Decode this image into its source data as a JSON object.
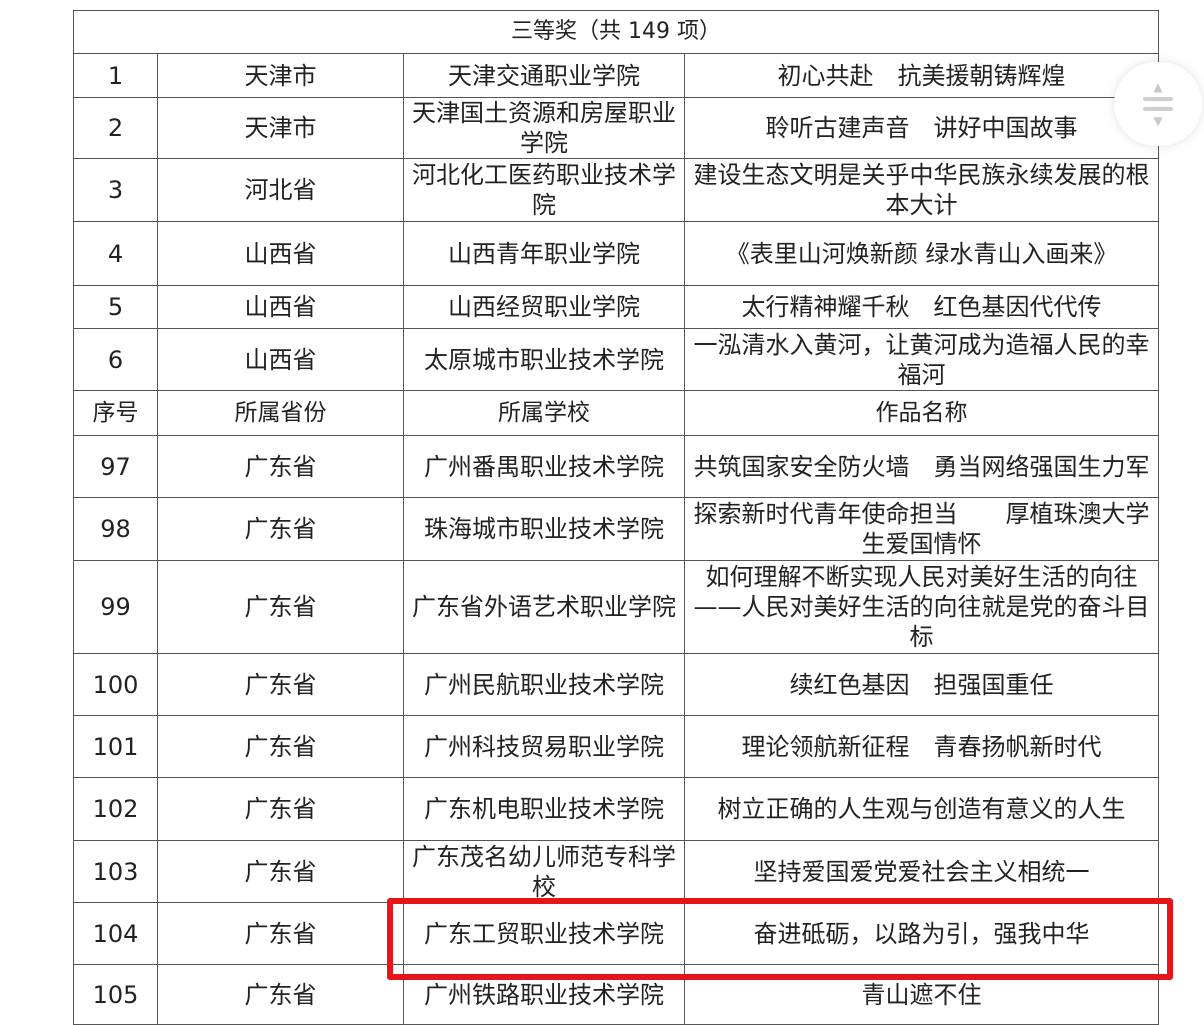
{
  "title": "三等奖（共 149 项）",
  "top_rows": [
    {
      "no": "1",
      "province": "天津市",
      "school": "天津交通职业学院",
      "work": "初心共赴　抗美援朝铸辉煌"
    },
    {
      "no": "2",
      "province": "天津市",
      "school": "天津国土资源和房屋职业学院",
      "work": "聆听古建声音　讲好中国故事"
    },
    {
      "no": "3",
      "province": "河北省",
      "school": "河北化工医药职业技术学院",
      "work": "建设生态文明是关乎中华民族永续发展的根本大计"
    },
    {
      "no": "4",
      "province": "山西省",
      "school": "山西青年职业学院",
      "work": "《表里山河焕新颜 绿水青山入画来》"
    },
    {
      "no": "5",
      "province": "山西省",
      "school": "山西经贸职业学院",
      "work": "太行精神耀千秋　红色基因代代传"
    },
    {
      "no": "6",
      "province": "山西省",
      "school": "太原城市职业技术学院",
      "work": "一泓清水入黄河，让黄河成为造福人民的幸福河"
    }
  ],
  "header": {
    "no": "序号",
    "province": "所属省份",
    "school": "所属学校",
    "work": "作品名称"
  },
  "bottom_rows": [
    {
      "no": "97",
      "province": "广东省",
      "school": "广州番禺职业技术学院",
      "work": "共筑国家安全防火墙　勇当网络强国生力军"
    },
    {
      "no": "98",
      "province": "广东省",
      "school": "珠海城市职业技术学院",
      "work": "探索新时代青年使命担当　　厚植珠澳大学生爱国情怀"
    },
    {
      "no": "99",
      "province": "广东省",
      "school": "广东省外语艺术职业学院",
      "work": "如何理解不断实现人民对美好生活的向往——人民对美好生活的向往就是党的奋斗目标"
    },
    {
      "no": "100",
      "province": "广东省",
      "school": "广州民航职业技术学院",
      "work": "续红色基因　担强国重任"
    },
    {
      "no": "101",
      "province": "广东省",
      "school": "广州科技贸易职业学院",
      "work": "理论领航新征程　青春扬帆新时代"
    },
    {
      "no": "102",
      "province": "广东省",
      "school": "广东机电职业技术学院",
      "work": "树立正确的人生观与创造有意义的人生"
    },
    {
      "no": "103",
      "province": "广东省",
      "school": "广东茂名幼儿师范专科学校",
      "work": "坚持爱国爱党爱社会主义相统一"
    },
    {
      "no": "104",
      "province": "广东省",
      "school": "广东工贸职业技术学院",
      "work": "奋进砥砺，以路为引，强我中华"
    },
    {
      "no": "105",
      "province": "广东省",
      "school": "广州铁路职业技术学院",
      "work": "青山遮不住"
    }
  ],
  "highlight_color": "#e8141b",
  "scroll_button_icon": "scroll-up-down-icon"
}
